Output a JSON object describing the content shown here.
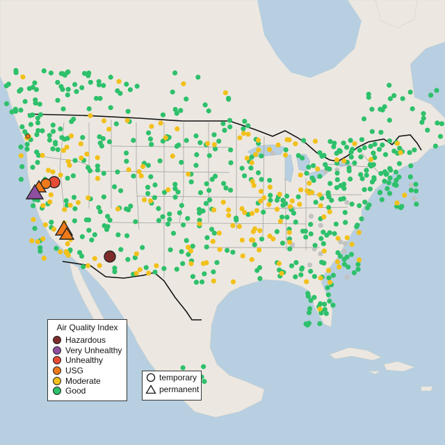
{
  "legend": {
    "title": "Air Quality Index",
    "categories": [
      {
        "label": "Hazardous",
        "color": "#7e2b2b"
      },
      {
        "label": "Very Unhealthy",
        "color": "#8e4fa0"
      },
      {
        "label": "Unhealthy",
        "color": "#e64b35"
      },
      {
        "label": "USG",
        "color": "#ef7a1a"
      },
      {
        "label": "Moderate",
        "color": "#f2c01b"
      },
      {
        "label": "Good",
        "color": "#2ec06b"
      }
    ],
    "no_data_color": "#c2c2c2"
  },
  "monitor_types": {
    "temporary": "temporary",
    "permanent": "permanent"
  },
  "map": {
    "region": "Contiguous United States with parts of Canada, Mexico and the Caribbean",
    "land_color": "#ede9e3",
    "water_color": "#b7cfe0",
    "notable_markers": [
      {
        "category": "Hazardous",
        "type": "temporary",
        "area": "southern Arizona"
      },
      {
        "category": "Unhealthy",
        "type": "temporary",
        "area": "northern California"
      },
      {
        "category": "Very Unhealthy",
        "type": "permanent",
        "area": "northern California"
      },
      {
        "category": "USG",
        "type": "permanent",
        "area": "northern California"
      },
      {
        "category": "USG",
        "type": "permanent",
        "area": "central California"
      }
    ]
  }
}
